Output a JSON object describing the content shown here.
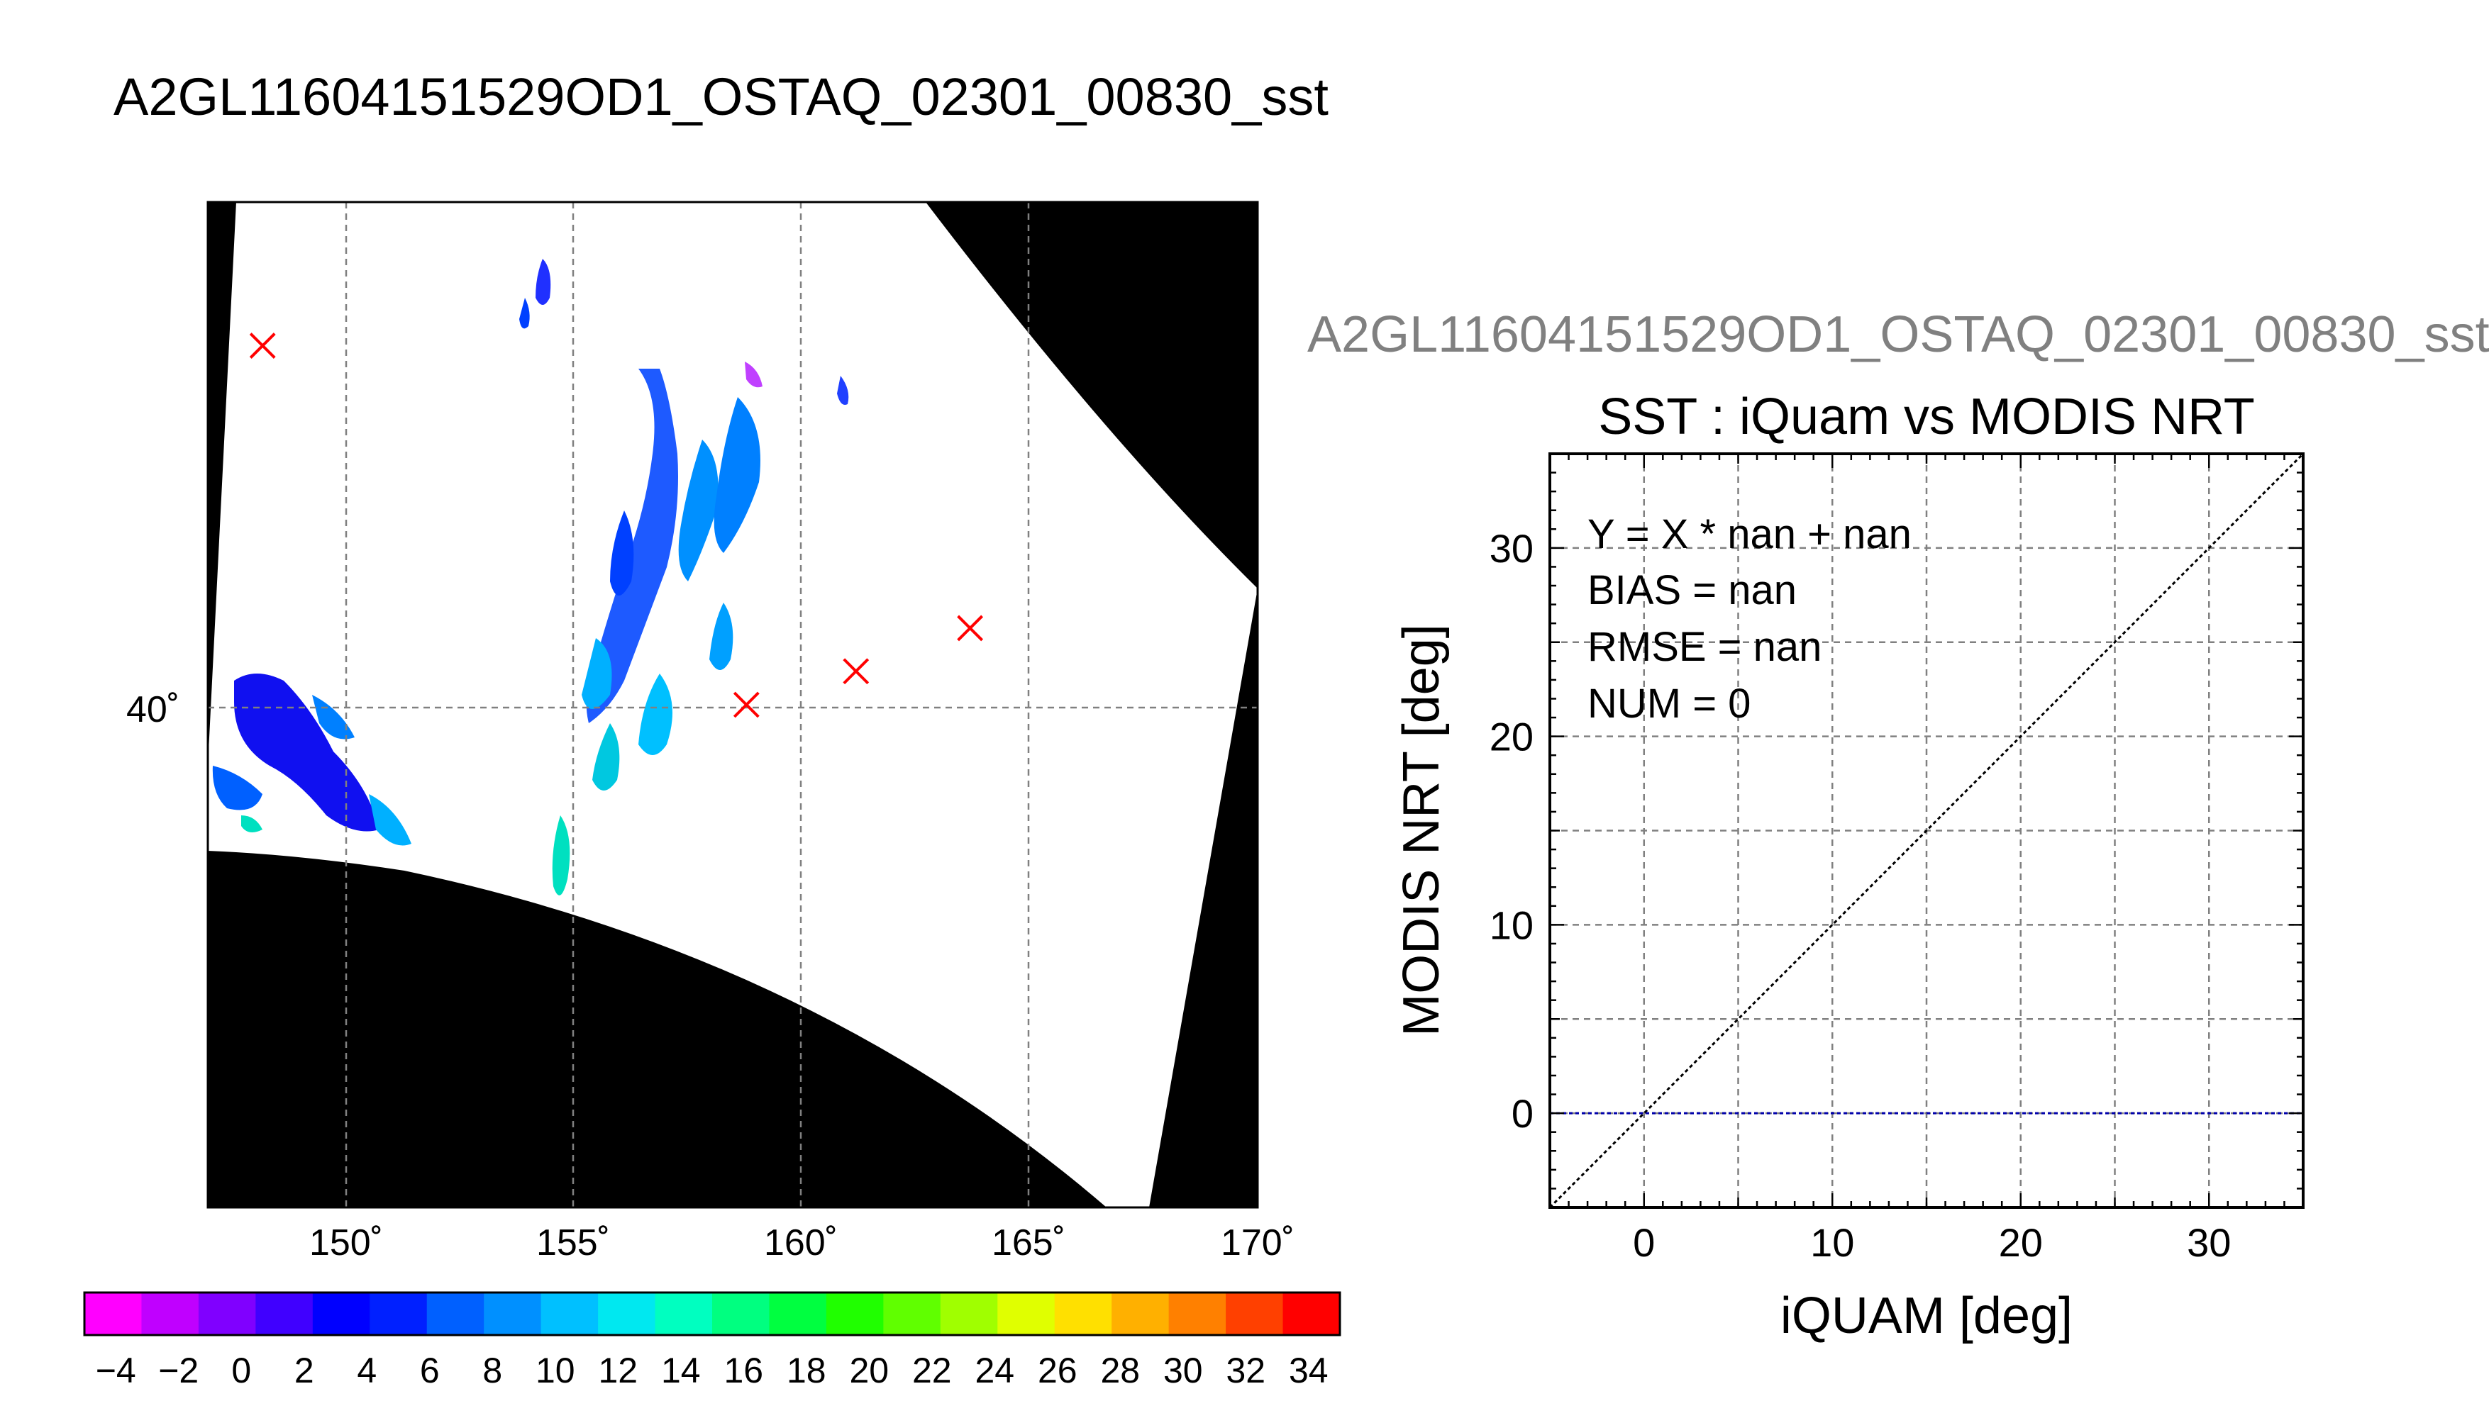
{
  "page_title": "A2GL11604151529OD1_OSTAQ_02301_00830_sst",
  "map": {
    "lat_ticks": [
      40
    ],
    "lon_ticks": [
      150,
      155,
      160,
      165,
      170
    ],
    "lat_tick_labels": [
      "40˚"
    ],
    "lon_tick_labels": [
      "150˚",
      "155˚",
      "160˚",
      "165˚",
      "170˚"
    ],
    "lon_range": [
      147,
      170
    ],
    "lat_range": [
      30,
      51
    ],
    "match_points": [
      {
        "lon": 148.2,
        "lat": 48.0
      },
      {
        "lon": 158.8,
        "lat": 40.5
      },
      {
        "lon": 161.2,
        "lat": 41.2
      },
      {
        "lon": 163.7,
        "lat": 42.1
      }
    ],
    "marker_color": "#ff0000",
    "mask_color": "#000000"
  },
  "colorbar": {
    "min": -5,
    "max": 35,
    "step": 2,
    "tick_labels": [
      "−4",
      "−2",
      "0",
      "2",
      "4",
      "6",
      "8",
      "10",
      "12",
      "14",
      "16",
      "18",
      "20",
      "22",
      "24",
      "26",
      "28",
      "30",
      "32",
      "34"
    ],
    "colors": [
      "#ff00ff",
      "#c000ff",
      "#8000ff",
      "#4000ff",
      "#0000ff",
      "#0020ff",
      "#0060ff",
      "#0090ff",
      "#00c0ff",
      "#00e8f0",
      "#00ffc0",
      "#00ff80",
      "#00ff40",
      "#20ff00",
      "#60ff00",
      "#a0ff00",
      "#e0ff00",
      "#ffe000",
      "#ffb000",
      "#ff8000",
      "#ff4000",
      "#ff0000"
    ]
  },
  "chart_data": {
    "type": "scatter",
    "subtitle": "A2GL11604151529OD1_OSTAQ_02301_00830_sst",
    "title": "SST : iQuam vs MODIS NRT",
    "xlabel": "iQUAM [deg]",
    "ylabel": "MODIS NRT [deg]",
    "xlim": [
      -5,
      35
    ],
    "ylim": [
      -5,
      35
    ],
    "xticks": [
      0,
      10,
      20,
      30
    ],
    "yticks": [
      0,
      10,
      20,
      30
    ],
    "grid": true,
    "series": [
      {
        "x": [],
        "y": []
      }
    ],
    "reference_line": {
      "x": [
        -5,
        35
      ],
      "y": [
        -5,
        35
      ],
      "color": "#000000"
    },
    "zero_line": {
      "y": 0,
      "color": "#0000aa"
    },
    "stats": [
      "Y = X * nan + nan",
      "BIAS = nan",
      "RMSE = nan",
      "NUM = 0"
    ]
  }
}
